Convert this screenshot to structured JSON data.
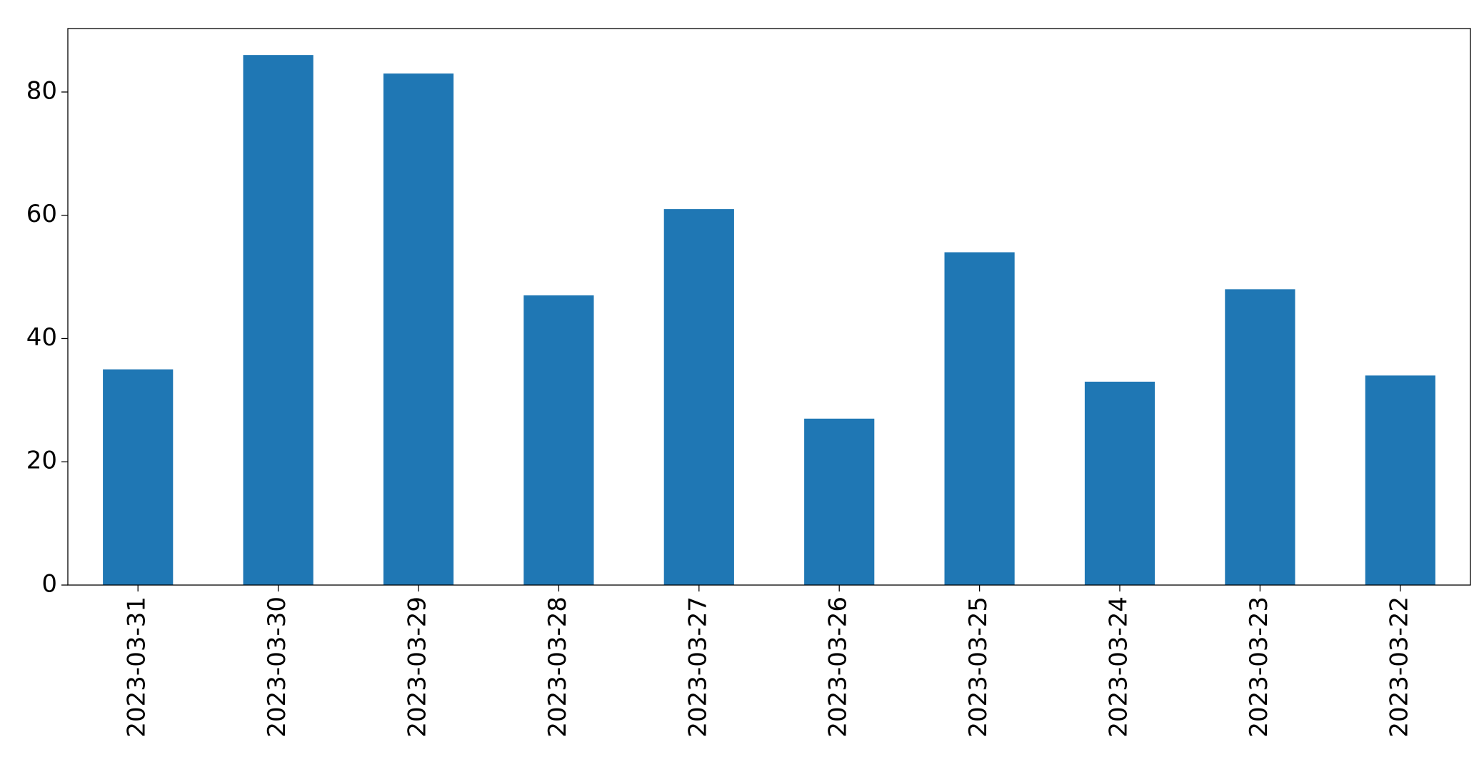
{
  "chart_data": {
    "type": "bar",
    "categories": [
      "2023-03-31",
      "2023-03-30",
      "2023-03-29",
      "2023-03-28",
      "2023-03-27",
      "2023-03-26",
      "2023-03-25",
      "2023-03-24",
      "2023-03-23",
      "2023-03-22"
    ],
    "values": [
      35,
      86,
      83,
      47,
      61,
      27,
      54,
      33,
      48,
      34
    ],
    "color": "#1f77b4",
    "ylim": [
      0,
      90.3
    ],
    "yticks": [
      0,
      20,
      40,
      60,
      80
    ],
    "grid": false
  }
}
